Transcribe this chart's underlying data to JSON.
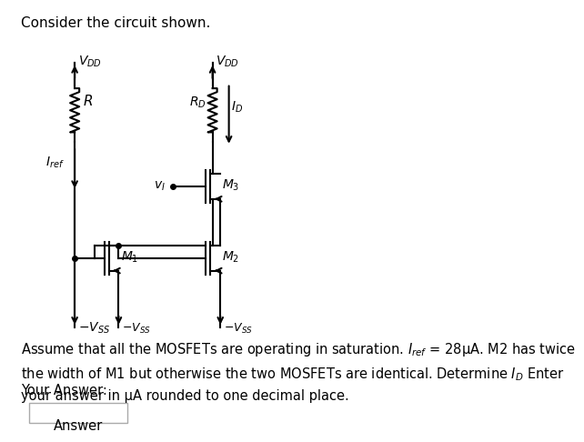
{
  "title": "Consider the circuit shown.",
  "background_color": "#ffffff",
  "text_color": "#000000",
  "body_text": "Assume that all the MOSFETs are operating in saturation. $I_{ref}$ = 28μA. M2 has twice\nthe width of M1 but otherwise the two MOSFETs are identical. Determine $I_D$ Enter\nyour answer in μA rounded to one decimal place.",
  "your_answer_label": "Your Answer:",
  "answer_label": "Answer",
  "vdd_label": "$V_{DD}$",
  "vss_label": "$-V_{SS}$",
  "r_label": "$R$",
  "rd_label": "$R_D$",
  "id_label": "$I_D$",
  "iref_label": "$I_{ref}$",
  "vi_label": "$v_I$",
  "m1_label": "$M_1$",
  "m2_label": "$M_2$",
  "m3_label": "$M_3$"
}
